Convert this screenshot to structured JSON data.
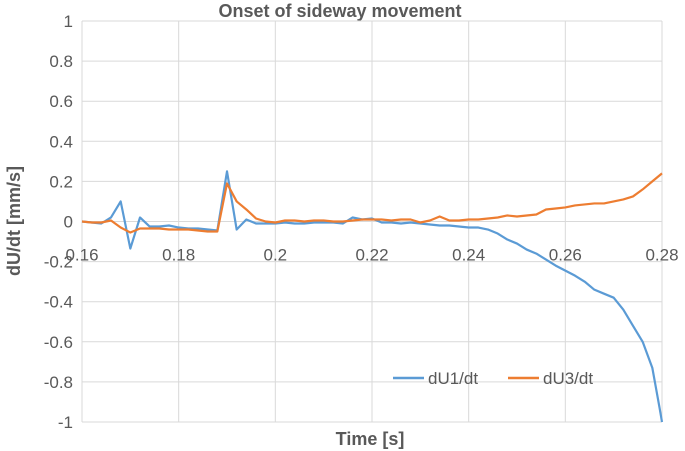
{
  "chart_data": {
    "type": "line",
    "title": "Onset of sideway movement",
    "xlabel": "Time [s]",
    "ylabel": "dU/dt [mm/s]",
    "xlim": [
      0.16,
      0.28
    ],
    "ylim": [
      -1,
      1
    ],
    "x_ticks": [
      "0.16",
      "0.18",
      "0.2",
      "0.22",
      "0.24",
      "0.26",
      "0.28"
    ],
    "y_ticks": [
      "1",
      "0.8",
      "0.6",
      "0.4",
      "0.2",
      "0",
      "-0.2",
      "-0.4",
      "-0.6",
      "-0.8",
      "-1"
    ],
    "grid": true,
    "legend_position": "bottom-right",
    "series": [
      {
        "name": "dU1/dt",
        "color": "#5B9BD5",
        "points": [
          [
            0.16,
            0.0
          ],
          [
            0.162,
            -0.005
          ],
          [
            0.164,
            -0.01
          ],
          [
            0.166,
            0.02
          ],
          [
            0.168,
            0.1
          ],
          [
            0.17,
            -0.135
          ],
          [
            0.172,
            0.02
          ],
          [
            0.174,
            -0.025
          ],
          [
            0.176,
            -0.025
          ],
          [
            0.178,
            -0.02
          ],
          [
            0.18,
            -0.03
          ],
          [
            0.182,
            -0.035
          ],
          [
            0.184,
            -0.035
          ],
          [
            0.186,
            -0.04
          ],
          [
            0.188,
            -0.045
          ],
          [
            0.19,
            0.25
          ],
          [
            0.192,
            -0.04
          ],
          [
            0.194,
            0.01
          ],
          [
            0.196,
            -0.01
          ],
          [
            0.198,
            -0.01
          ],
          [
            0.2,
            -0.01
          ],
          [
            0.202,
            -0.005
          ],
          [
            0.204,
            -0.01
          ],
          [
            0.206,
            -0.01
          ],
          [
            0.208,
            -0.005
          ],
          [
            0.21,
            -0.005
          ],
          [
            0.212,
            -0.005
          ],
          [
            0.214,
            -0.01
          ],
          [
            0.216,
            0.02
          ],
          [
            0.218,
            0.01
          ],
          [
            0.22,
            0.015
          ],
          [
            0.222,
            -0.005
          ],
          [
            0.224,
            -0.005
          ],
          [
            0.226,
            -0.01
          ],
          [
            0.228,
            -0.005
          ],
          [
            0.23,
            -0.01
          ],
          [
            0.232,
            -0.015
          ],
          [
            0.234,
            -0.02
          ],
          [
            0.236,
            -0.02
          ],
          [
            0.238,
            -0.025
          ],
          [
            0.24,
            -0.03
          ],
          [
            0.242,
            -0.03
          ],
          [
            0.244,
            -0.04
          ],
          [
            0.246,
            -0.06
          ],
          [
            0.248,
            -0.09
          ],
          [
            0.25,
            -0.11
          ],
          [
            0.252,
            -0.14
          ],
          [
            0.254,
            -0.16
          ],
          [
            0.256,
            -0.19
          ],
          [
            0.258,
            -0.22
          ],
          [
            0.26,
            -0.245
          ],
          [
            0.262,
            -0.27
          ],
          [
            0.264,
            -0.3
          ],
          [
            0.266,
            -0.34
          ],
          [
            0.268,
            -0.36
          ],
          [
            0.27,
            -0.38
          ],
          [
            0.272,
            -0.44
          ],
          [
            0.274,
            -0.52
          ],
          [
            0.276,
            -0.6
          ],
          [
            0.278,
            -0.73
          ],
          [
            0.2795,
            -0.93
          ],
          [
            0.28,
            -1.0
          ]
        ]
      },
      {
        "name": "dU3/dt",
        "color": "#ED7D31",
        "points": [
          [
            0.16,
            0.0
          ],
          [
            0.162,
            -0.005
          ],
          [
            0.164,
            -0.005
          ],
          [
            0.166,
            0.005
          ],
          [
            0.168,
            -0.03
          ],
          [
            0.17,
            -0.055
          ],
          [
            0.172,
            -0.035
          ],
          [
            0.174,
            -0.035
          ],
          [
            0.176,
            -0.035
          ],
          [
            0.178,
            -0.04
          ],
          [
            0.18,
            -0.04
          ],
          [
            0.182,
            -0.04
          ],
          [
            0.184,
            -0.045
          ],
          [
            0.186,
            -0.05
          ],
          [
            0.188,
            -0.05
          ],
          [
            0.19,
            0.19
          ],
          [
            0.192,
            0.1
          ],
          [
            0.194,
            0.06
          ],
          [
            0.196,
            0.015
          ],
          [
            0.198,
            0.0
          ],
          [
            0.2,
            -0.005
          ],
          [
            0.202,
            0.005
          ],
          [
            0.204,
            0.005
          ],
          [
            0.206,
            0.0
          ],
          [
            0.208,
            0.005
          ],
          [
            0.21,
            0.005
          ],
          [
            0.212,
            0.0
          ],
          [
            0.214,
            0.0
          ],
          [
            0.216,
            0.005
          ],
          [
            0.218,
            0.01
          ],
          [
            0.22,
            0.01
          ],
          [
            0.222,
            0.01
          ],
          [
            0.224,
            0.005
          ],
          [
            0.226,
            0.01
          ],
          [
            0.228,
            0.01
          ],
          [
            0.23,
            -0.005
          ],
          [
            0.232,
            0.005
          ],
          [
            0.234,
            0.025
          ],
          [
            0.236,
            0.005
          ],
          [
            0.238,
            0.005
          ],
          [
            0.24,
            0.01
          ],
          [
            0.242,
            0.01
          ],
          [
            0.244,
            0.015
          ],
          [
            0.246,
            0.02
          ],
          [
            0.248,
            0.03
          ],
          [
            0.25,
            0.025
          ],
          [
            0.252,
            0.03
          ],
          [
            0.254,
            0.035
          ],
          [
            0.256,
            0.06
          ],
          [
            0.258,
            0.065
          ],
          [
            0.26,
            0.07
          ],
          [
            0.262,
            0.08
          ],
          [
            0.264,
            0.085
          ],
          [
            0.266,
            0.09
          ],
          [
            0.268,
            0.09
          ],
          [
            0.27,
            0.1
          ],
          [
            0.272,
            0.11
          ],
          [
            0.274,
            0.125
          ],
          [
            0.276,
            0.16
          ],
          [
            0.278,
            0.2
          ],
          [
            0.28,
            0.24
          ]
        ]
      }
    ]
  }
}
